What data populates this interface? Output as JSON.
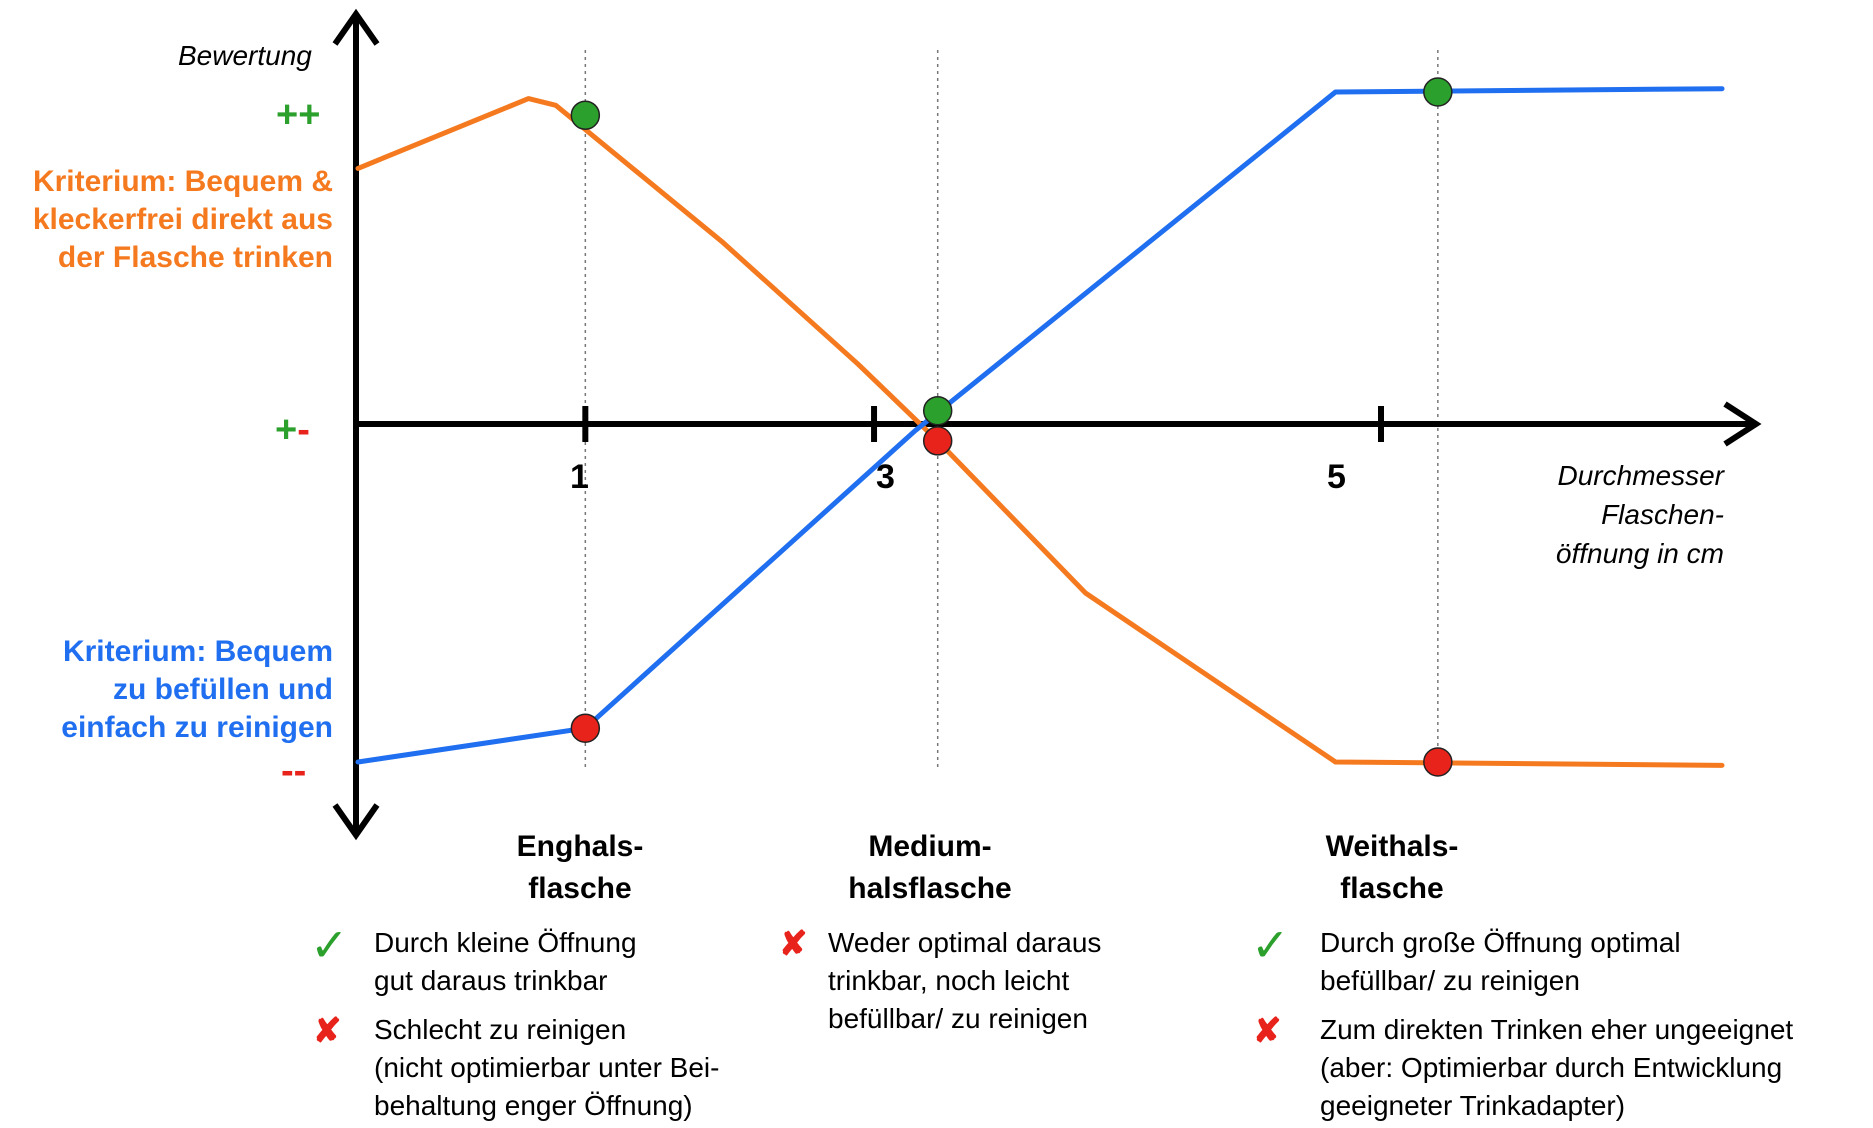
{
  "chart_data": {
    "type": "line",
    "ylabel": "Bewertung",
    "xlabel_lines": [
      "Durchmesser",
      "Flaschen-",
      "öffnung in cm"
    ],
    "x_ticks": [
      "1",
      "3",
      "5"
    ],
    "y_ticks": {
      "top": {
        "plus": "++"
      },
      "middle": {
        "plus": "+",
        "minus": "-"
      },
      "bottom": {
        "minus": "--"
      }
    },
    "xlim": [
      0,
      6
    ],
    "ylim": [
      -1,
      1
    ],
    "colors": {
      "orange": "#f57a1f",
      "blue": "#1f6ff0",
      "green": "#2ca02c",
      "red": "#e8231b",
      "axis": "#000000"
    },
    "reference_x": [
      1,
      2.55,
      4.75
    ],
    "series": [
      {
        "name_lines": [
          "Kriterium: Bequem &",
          "kleckerfrei direkt aus",
          "der Flasche trinken"
        ],
        "color": "#f57a1f",
        "points": [
          [
            0,
            0.77
          ],
          [
            0.75,
            0.98
          ],
          [
            0.87,
            0.96
          ],
          [
            1.6,
            0.55
          ],
          [
            2.2,
            0.18
          ],
          [
            2.55,
            -0.05
          ],
          [
            3.2,
            -0.5
          ],
          [
            4.3,
            -1.0
          ],
          [
            6.0,
            -1.01
          ]
        ]
      },
      {
        "name_lines": [
          "Kriterium: Bequem",
          "zu befüllen und",
          "einfach zu reinigen"
        ],
        "color": "#1f6ff0",
        "points": [
          [
            0,
            -1.0
          ],
          [
            1.0,
            -0.9
          ],
          [
            2.45,
            -0.02
          ],
          [
            4.3,
            1.0
          ],
          [
            6.0,
            1.01
          ]
        ]
      }
    ],
    "markers": [
      {
        "x": 1.0,
        "y": 0.93,
        "color": "green"
      },
      {
        "x": 1.0,
        "y": -0.9,
        "color": "red"
      },
      {
        "x": 2.55,
        "y": 0.04,
        "color": "green"
      },
      {
        "x": 2.55,
        "y": -0.05,
        "color": "red"
      },
      {
        "x": 4.75,
        "y": 1.0,
        "color": "green"
      },
      {
        "x": 4.75,
        "y": -1.0,
        "color": "red"
      }
    ],
    "categories": [
      {
        "lines": [
          "Enghals-",
          "flasche"
        ],
        "notes": [
          {
            "icon": "check-icon",
            "lines": [
              "Durch kleine Öffnung",
              "gut daraus trinkbar"
            ]
          },
          {
            "icon": "cross-icon",
            "lines": [
              "Schlecht zu reinigen",
              "(nicht optimierbar unter Bei-",
              "behaltung enger Öffnung)"
            ]
          }
        ]
      },
      {
        "lines": [
          "Medium-",
          "halsflasche"
        ],
        "notes": [
          {
            "icon": "cross-icon",
            "lines": [
              "Weder optimal daraus",
              "trinkbar, noch leicht",
              "befüllbar/ zu reinigen"
            ]
          }
        ]
      },
      {
        "lines": [
          "Weithals-",
          "flasche"
        ],
        "notes": [
          {
            "icon": "check-icon",
            "lines": [
              "Durch große Öffnung optimal",
              "befüllbar/ zu reinigen"
            ]
          },
          {
            "icon": "cross-icon",
            "lines": [
              "Zum direkten Trinken eher ungeeignet",
              "(aber: Optimierbar durch Entwicklung",
              "geeigneter Trinkadapter)"
            ]
          }
        ]
      }
    ],
    "grid": false,
    "legend": "none"
  }
}
